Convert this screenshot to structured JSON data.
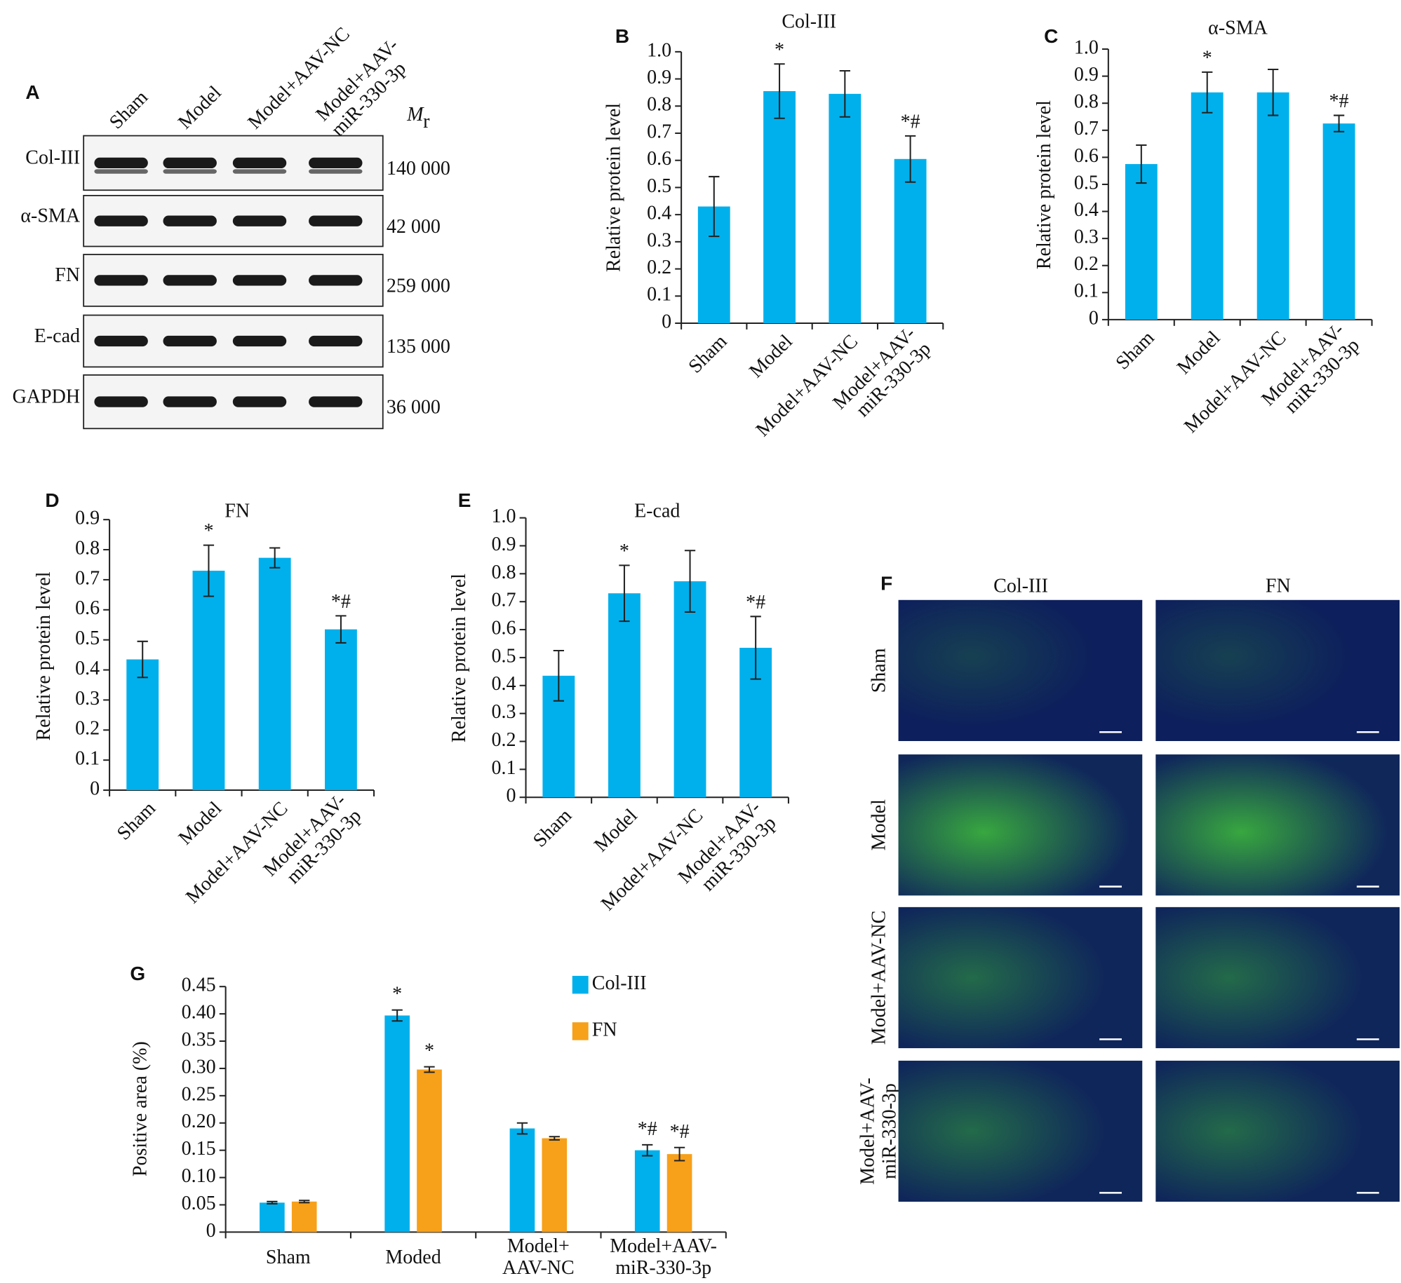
{
  "panel_labels": [
    "A",
    "B",
    "C",
    "D",
    "E",
    "F",
    "G"
  ],
  "blot": {
    "lanes": [
      "Sham",
      "Model",
      "Model+AAV-NC",
      "Model+AAV-\nmiR-330-3p"
    ],
    "mr_label": "M",
    "mr_subscript": "r",
    "proteins": [
      {
        "name": "Col-III",
        "mr": "140 000"
      },
      {
        "name": "α-SMA",
        "mr": "42 000"
      },
      {
        "name": "FN",
        "mr": "259 000"
      },
      {
        "name": "E-cad",
        "mr": "135 000"
      },
      {
        "name": "GAPDH",
        "mr": "36 000"
      }
    ]
  },
  "micrographs": {
    "columns": [
      "Col-III",
      "FN"
    ],
    "rows": [
      "Sham",
      "Model",
      "Model+AAV-NC",
      "Model+AAV-\nmiR-330-3p"
    ]
  },
  "chart_data": [
    {
      "type": "bar",
      "title": "Col-III",
      "y_label": "Relative protein level",
      "color": "#00b0ec",
      "categories": [
        "Sham",
        "Model",
        "Model+AAV-NC",
        "Model+AAV-\nmiR-330-3p"
      ],
      "values": [
        0.43,
        0.855,
        0.845,
        0.605
      ],
      "errors": [
        0.11,
        0.1,
        0.085,
        0.085
      ],
      "annotations": [
        null,
        "*",
        null,
        "*#"
      ],
      "ylim": [
        0,
        1
      ],
      "yticks": [
        0,
        0.1,
        0.2,
        0.3,
        0.4,
        0.5,
        0.6,
        0.7,
        0.8,
        0.9,
        {
          "value": 1,
          "label": "1.0"
        }
      ]
    },
    {
      "type": "bar",
      "title": "α-SMA",
      "y_label": "Relative protein level",
      "color": "#00b0ec",
      "categories": [
        "Sham",
        "Model",
        "Model+AAV-NC",
        "Model+AAV-\nmiR-330-3p"
      ],
      "values": [
        0.575,
        0.84,
        0.84,
        0.725
      ],
      "errors": [
        0.07,
        0.075,
        0.085,
        0.03
      ],
      "annotations": [
        null,
        "*",
        null,
        "*#"
      ],
      "ylim": [
        0,
        1
      ],
      "yticks": [
        0,
        0.1,
        0.2,
        0.3,
        0.4,
        0.5,
        0.6,
        0.7,
        0.8,
        0.9,
        {
          "value": 1,
          "label": "1.0"
        }
      ]
    },
    {
      "type": "bar",
      "title": "FN",
      "y_label": "Relative protein level",
      "color": "#00b0ec",
      "categories": [
        "Sham",
        "Model",
        "Model+AAV-NC",
        "Model+AAV-\nmiR-330-3p"
      ],
      "values": [
        0.435,
        0.73,
        0.773,
        0.535
      ],
      "errors": [
        0.06,
        0.085,
        0.033,
        0.045
      ],
      "annotations": [
        null,
        "*",
        null,
        "*#"
      ],
      "ylim": [
        0,
        0.9
      ],
      "yticks": [
        0,
        0.1,
        0.2,
        0.3,
        0.4,
        0.5,
        0.6,
        0.7,
        0.8,
        0.9
      ]
    },
    {
      "type": "bar",
      "title": "E-cad",
      "y_label": "Relative protein level",
      "color": "#00b0ec",
      "categories": [
        "Sham",
        "Model",
        "Model+AAV-NC",
        "Model+AAV-\nmiR-330-3p"
      ],
      "values": [
        0.435,
        0.73,
        0.773,
        0.535
      ],
      "errors": [
        0.09,
        0.1,
        0.11,
        0.112
      ],
      "annotations": [
        null,
        "*",
        null,
        "*#"
      ],
      "ylim": [
        0,
        1
      ],
      "yticks": [
        0,
        0.1,
        0.2,
        0.3,
        0.4,
        0.5,
        0.6,
        0.7,
        0.8,
        0.9,
        {
          "value": 1,
          "label": "1.0"
        }
      ]
    },
    {
      "type": "bar",
      "y_label": "Positive area (%)",
      "categories": [
        "Sham",
        "Moded",
        "Model+\nAAV-NC",
        "Model+AAV-\nmiR-330-3p"
      ],
      "series": [
        {
          "name": "Col-III",
          "color": "#00b0ec",
          "values": [
            0.054,
            0.397,
            0.19,
            0.15
          ],
          "errors": [
            0.002,
            0.01,
            0.01,
            0.01
          ],
          "annotations": [
            null,
            "*",
            null,
            "*#"
          ]
        },
        {
          "name": "FN",
          "color": "#f7a01a",
          "values": [
            0.056,
            0.298,
            0.172,
            0.143
          ],
          "errors": [
            0.002,
            0.005,
            0.003,
            0.012
          ],
          "annotations": [
            null,
            "*",
            null,
            "*#"
          ]
        }
      ],
      "ylim": [
        0,
        0.45
      ],
      "yticks": [
        0,
        0.05,
        {
          "value": 0.1,
          "label": "0.10"
        },
        0.15,
        {
          "value": 0.2,
          "label": "0.20"
        },
        0.25,
        {
          "value": 0.3,
          "label": "0.30"
        },
        0.35,
        {
          "value": 0.4,
          "label": "0.40"
        },
        0.45
      ]
    }
  ]
}
